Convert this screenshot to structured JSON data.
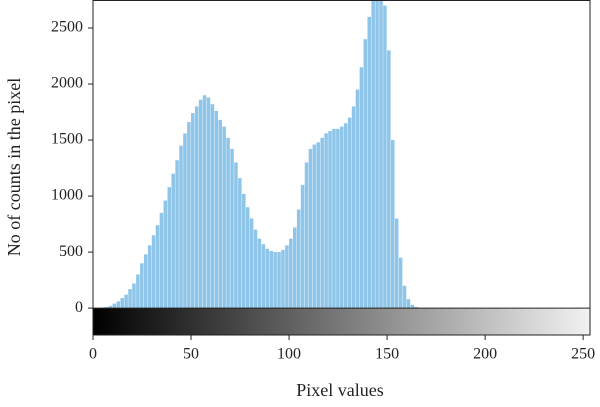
{
  "chart_data": {
    "type": "histogram",
    "x_label": "Pixel values",
    "y_label": "No of counts in the pixel",
    "bins": [
      4,
      6,
      8,
      10,
      12,
      14,
      16,
      18,
      20,
      22,
      24,
      26,
      28,
      30,
      32,
      34,
      36,
      38,
      40,
      42,
      44,
      46,
      48,
      50,
      52,
      54,
      56,
      58,
      60,
      62,
      64,
      66,
      68,
      70,
      72,
      74,
      76,
      78,
      80,
      82,
      84,
      86,
      88,
      90,
      92,
      94,
      96,
      98,
      100,
      102,
      104,
      106,
      108,
      110,
      112,
      114,
      116,
      118,
      120,
      122,
      124,
      126,
      128,
      130,
      132,
      134,
      136,
      138,
      140,
      142,
      144,
      146,
      148,
      150,
      152,
      154,
      156,
      158,
      160,
      162,
      164,
      166
    ],
    "values": [
      5,
      10,
      20,
      40,
      60,
      90,
      120,
      170,
      220,
      300,
      400,
      480,
      560,
      650,
      740,
      850,
      960,
      1080,
      1200,
      1320,
      1450,
      1560,
      1660,
      1740,
      1800,
      1860,
      1900,
      1880,
      1820,
      1760,
      1680,
      1620,
      1520,
      1420,
      1300,
      1160,
      1020,
      900,
      800,
      700,
      620,
      570,
      530,
      510,
      500,
      500,
      520,
      560,
      620,
      720,
      880,
      1100,
      1300,
      1420,
      1460,
      1480,
      1520,
      1560,
      1580,
      1600,
      1600,
      1620,
      1650,
      1700,
      1800,
      1950,
      2150,
      2400,
      2600,
      2750,
      2800,
      2800,
      2700,
      2300,
      1500,
      800,
      450,
      200,
      80,
      30,
      10
    ],
    "color": "#8ec5e8",
    "xlim": [
      0,
      253.5
    ],
    "xticks": [
      0,
      50,
      100,
      150,
      200,
      250
    ],
    "ylim": [
      -240,
      2750
    ],
    "yticks": [
      0,
      500,
      1000,
      1500,
      2000,
      2500
    ]
  }
}
